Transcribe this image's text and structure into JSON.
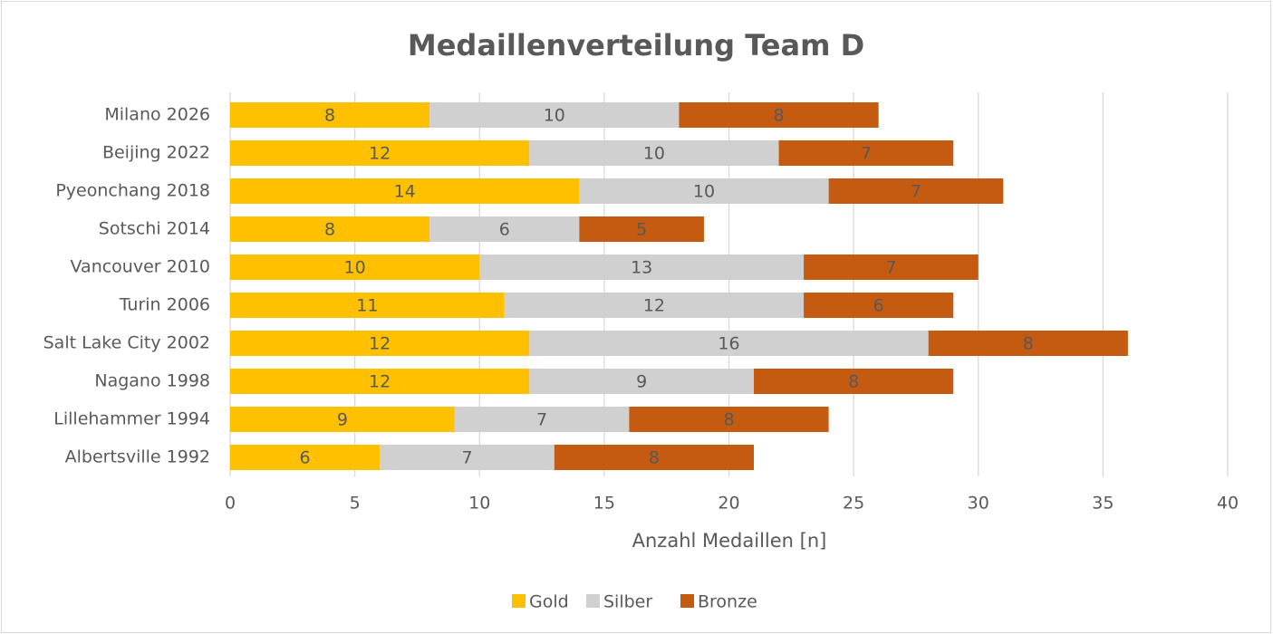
{
  "chart_data": {
    "type": "bar",
    "orientation": "horizontal",
    "stacked": true,
    "title": "Medaillenverteilung Team D",
    "xlabel": "Anzahl Medaillen [n]",
    "categories": [
      "Milano 2026",
      "Beijing 2022",
      "Pyeonchang 2018",
      "Sotschi 2014",
      "Vancouver 2010",
      "Turin 2006",
      "Salt Lake City 2002",
      "Nagano 1998",
      "Lillehammer 1994",
      "Albertsville 1992"
    ],
    "series": [
      {
        "name": "Gold",
        "color": "#ffc000",
        "values": [
          8,
          12,
          14,
          8,
          10,
          11,
          12,
          12,
          9,
          6
        ]
      },
      {
        "name": "Silber",
        "color": "#d0d0d0",
        "values": [
          10,
          10,
          10,
          6,
          13,
          12,
          16,
          9,
          7,
          7
        ]
      },
      {
        "name": "Bronze",
        "color": "#c55a11",
        "values": [
          8,
          7,
          7,
          5,
          7,
          6,
          8,
          8,
          8,
          8
        ]
      }
    ],
    "xlim": [
      0,
      40
    ],
    "xticks": [
      0,
      5,
      10,
      15,
      20,
      25,
      30,
      35,
      40
    ],
    "grid": true,
    "legend": "bottom"
  }
}
